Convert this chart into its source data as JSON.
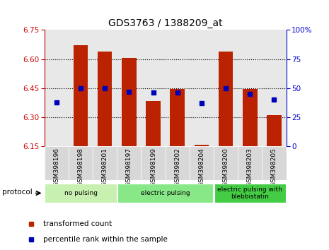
{
  "title": "GDS3763 / 1388209_at",
  "samples": [
    "GSM398196",
    "GSM398198",
    "GSM398201",
    "GSM398197",
    "GSM398199",
    "GSM398202",
    "GSM398204",
    "GSM398200",
    "GSM398203",
    "GSM398205"
  ],
  "red_values": [
    6.152,
    6.67,
    6.64,
    6.605,
    6.385,
    6.445,
    6.157,
    6.64,
    6.445,
    6.31
  ],
  "blue_pct": [
    38,
    50,
    50,
    47,
    46,
    46,
    37,
    50,
    45,
    40
  ],
  "ylim_left": [
    6.15,
    6.75
  ],
  "ylim_right": [
    0,
    100
  ],
  "yticks_left": [
    6.15,
    6.3,
    6.45,
    6.6,
    6.75
  ],
  "yticks_right": [
    0,
    25,
    50,
    75,
    100
  ],
  "hlines": [
    6.3,
    6.45,
    6.6
  ],
  "groups": [
    {
      "label": "no pulsing",
      "start": 0,
      "end": 3,
      "color": "#c8f0b0"
    },
    {
      "label": "electric pulsing",
      "start": 3,
      "end": 7,
      "color": "#88e888"
    },
    {
      "label": "electric pulsing with\nblebbistatin",
      "start": 7,
      "end": 10,
      "color": "#44cc44"
    }
  ],
  "bar_color": "#bb2200",
  "dot_color": "#0000bb",
  "bar_bottom": 6.15,
  "background_color": "#ffffff",
  "tick_color_left": "#cc0000",
  "tick_color_right": "#0000cc",
  "legend_labels": [
    "transformed count",
    "percentile rank within the sample"
  ],
  "protocol_label": "protocol",
  "bar_width": 0.6
}
